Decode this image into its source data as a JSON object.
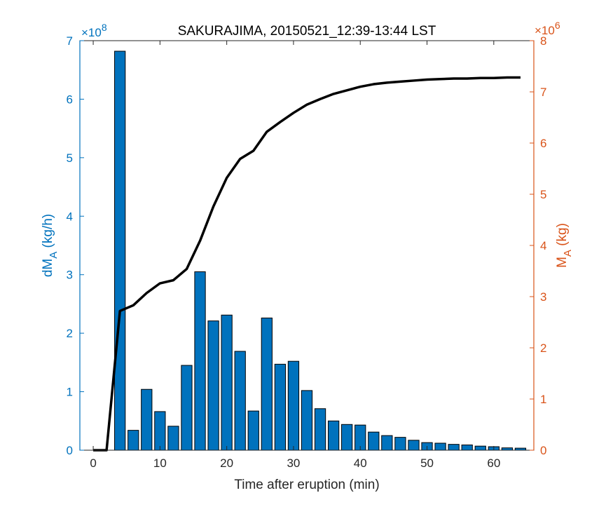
{
  "chart_data": {
    "type": "bar",
    "title": "SAKURAJIMA, 20150521_12:39-13:44 LST",
    "xlabel": "Time after eruption (min)",
    "ylabel_left": {
      "main": "dM",
      "sub": "A",
      "unit": " (kg/h)"
    },
    "ylabel_right": {
      "main": "M",
      "sub": "A",
      "unit": " (kg)"
    },
    "left_exponent": {
      "base": "×10",
      "power": "8"
    },
    "right_exponent": {
      "base": "×10",
      "power": "6"
    },
    "xlim": [
      -2,
      66
    ],
    "ylim_left": [
      0,
      7
    ],
    "ylim_right": [
      0,
      8
    ],
    "xticks": [
      0,
      10,
      20,
      30,
      40,
      50,
      60
    ],
    "yticks_left": [
      0,
      1,
      2,
      3,
      4,
      5,
      6,
      7
    ],
    "yticks_right": [
      0,
      1,
      2,
      3,
      4,
      5,
      6,
      7,
      8
    ],
    "bar_width": 1.6,
    "colors": {
      "bars": "#0072BD",
      "left_axis": "#0072BD",
      "right_axis": "#D95319",
      "cumulative_line": "#000000"
    },
    "series": [
      {
        "axis": "left",
        "kind": "bar",
        "x": [
          0,
          2,
          4,
          6,
          8,
          10,
          12,
          14,
          16,
          18,
          20,
          22,
          24,
          26,
          28,
          30,
          32,
          34,
          36,
          38,
          40,
          42,
          44,
          46,
          48,
          50,
          52,
          54,
          56,
          58,
          60,
          62,
          64
        ],
        "values": [
          0,
          0,
          6.82,
          0.34,
          1.04,
          0.66,
          0.41,
          1.45,
          3.05,
          2.21,
          2.31,
          1.69,
          0.67,
          2.26,
          1.47,
          1.52,
          1.02,
          0.71,
          0.5,
          0.44,
          0.43,
          0.31,
          0.25,
          0.22,
          0.17,
          0.13,
          0.12,
          0.1,
          0.09,
          0.07,
          0.06,
          0.04,
          0.035
        ]
      },
      {
        "axis": "right",
        "kind": "line",
        "x": [
          0,
          2,
          4,
          6,
          8,
          10,
          12,
          14,
          16,
          18,
          20,
          22,
          24,
          26,
          28,
          30,
          32,
          34,
          36,
          38,
          40,
          42,
          44,
          46,
          48,
          50,
          52,
          54,
          56,
          58,
          60,
          62,
          64
        ],
        "values": [
          0,
          0,
          2.72,
          2.83,
          3.07,
          3.26,
          3.32,
          3.54,
          4.09,
          4.76,
          5.32,
          5.69,
          5.85,
          6.22,
          6.41,
          6.59,
          6.75,
          6.86,
          6.96,
          7.03,
          7.1,
          7.15,
          7.18,
          7.2,
          7.22,
          7.24,
          7.25,
          7.26,
          7.26,
          7.27,
          7.27,
          7.28,
          7.28
        ]
      }
    ]
  }
}
